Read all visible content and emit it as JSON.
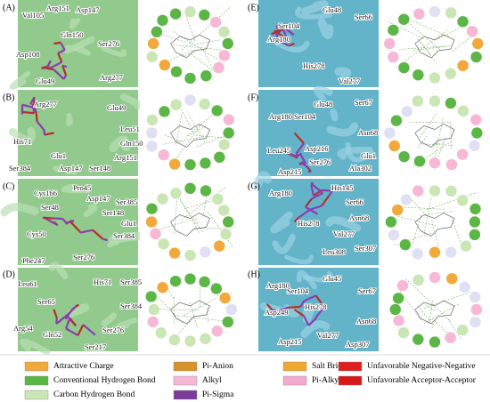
{
  "panels": [
    {
      "label": "(A)",
      "residues": [
        "Val105",
        "Arg151",
        "Asp147",
        "Gln150",
        "Asp108",
        "Ser276",
        "Glu49",
        "Arg277"
      ]
    },
    {
      "label": "(B)",
      "residues": [
        "Arg277",
        "Glu49",
        "Leu51",
        "Gln150",
        "His71",
        "Glu1",
        "Ser384",
        "Asp147",
        "Ser148",
        "Arg151"
      ]
    },
    {
      "label": "(C)",
      "residues": [
        "Cys166",
        "Pro45",
        "Asp147",
        "Ser385",
        "Ser48",
        "Ser148",
        "Glu1",
        "Ser384",
        "Cys50",
        "Ser276",
        "Phe247"
      ]
    },
    {
      "label": "(D)",
      "residues": [
        "Leu61",
        "His71",
        "Ser385",
        "Ser65",
        "Ser384",
        "Arg54",
        "Gln52",
        "Ser276",
        "Ser217"
      ]
    },
    {
      "label": "(E)",
      "residues": [
        "Ser104",
        "Glu48",
        "Ser66",
        "Arg180",
        "His278",
        "Val277"
      ]
    },
    {
      "label": "(F)",
      "residues": [
        "Arg180",
        "Ser104",
        "Glu48",
        "Ser67",
        "Leu245",
        "Asp216",
        "Asn68",
        "Ser276",
        "Glu1",
        "Asp215",
        "Ala302"
      ]
    },
    {
      "label": "(G)",
      "residues": [
        "Arg180",
        "His145",
        "Ser66",
        "Asn68",
        "His278",
        "Val277",
        "Ser307",
        "Leu308"
      ]
    },
    {
      "label": "(H)",
      "residues": [
        "Arg180",
        "Ser104",
        "Glu45",
        "Ser67",
        "Asp249",
        "His278",
        "Asn68",
        "Val277",
        "Asp215",
        "Asp307"
      ]
    }
  ],
  "legend": [
    {
      "name": "Attractive Charge",
      "color": "#f2a93b"
    },
    {
      "name": "Conventional Hydrogen Bond",
      "color": "#5cb646"
    },
    {
      "name": "Carbon Hydrogen Bond",
      "color": "#c9e6b4"
    },
    {
      "name": "Pi-Anion",
      "color": "#d9922a"
    },
    {
      "name": "Alkyl",
      "color": "#f6b8d4"
    },
    {
      "name": "Pi-Sigma",
      "color": "#7a3c98"
    },
    {
      "name": "Salt Bridge",
      "color": "#f0a730"
    },
    {
      "name": "Pi-Alkyl",
      "color": "#f2a9cc"
    },
    {
      "name": "Unfavorable Negative-Negative",
      "color": "#e02020"
    },
    {
      "name": "Unfavorable Acceptor-Acceptor",
      "color": "#d81818"
    }
  ]
}
